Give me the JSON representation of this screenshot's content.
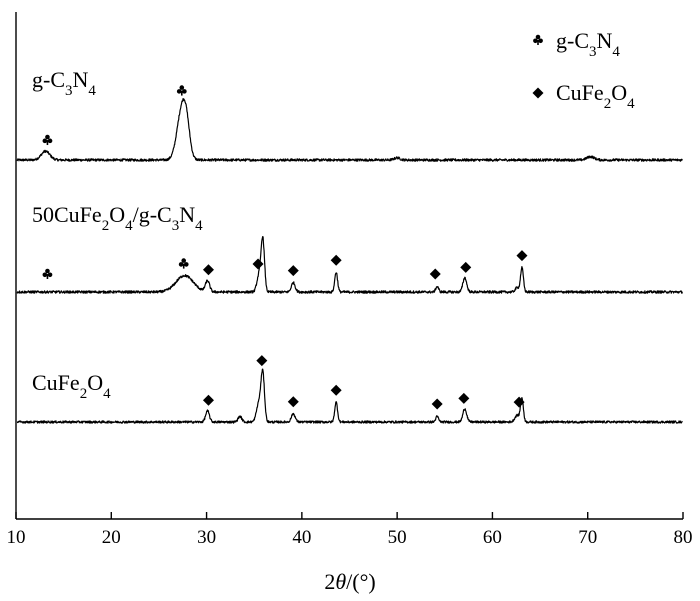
{
  "chart_data": {
    "type": "line",
    "xlabel_prefix": "2",
    "xlabel_symbol": "θ",
    "xlabel_unit": "/(°)",
    "xlim": [
      10,
      80
    ],
    "xticks": [
      "10",
      "20",
      "30",
      "40",
      "50",
      "60",
      "70",
      "80"
    ],
    "legend": {
      "position": "top-right",
      "entries": [
        {
          "marker": "club",
          "parts": [
            [
              "g-C",
              ""
            ],
            [
              "3",
              "sub"
            ],
            [
              "N",
              ""
            ],
            [
              "4",
              "sub"
            ]
          ]
        },
        {
          "marker": "diamond",
          "parts": [
            [
              "CuFe",
              ""
            ],
            [
              "2",
              "sub"
            ],
            [
              "O",
              ""
            ],
            [
              "4",
              "sub"
            ]
          ]
        }
      ]
    },
    "series": [
      {
        "name_parts": [
          [
            "g-C",
            ""
          ],
          [
            "3",
            "sub"
          ],
          [
            "N",
            ""
          ],
          [
            "4",
            "sub"
          ]
        ],
        "baseline": 0,
        "noise": 2.2,
        "peaks": [
          {
            "x": 13.1,
            "h": 16,
            "w": 0.45
          },
          {
            "x": 27.4,
            "h": 90,
            "w": 0.5
          },
          {
            "x": 27.9,
            "h": 40,
            "w": 0.35
          },
          {
            "x": 50.0,
            "h": 4,
            "w": 0.3
          },
          {
            "x": 70.3,
            "h": 6,
            "w": 0.4
          }
        ],
        "markers": [
          {
            "x": 13.3,
            "type": "club"
          },
          {
            "x": 27.4,
            "type": "club"
          }
        ]
      },
      {
        "name_parts": [
          [
            "50CuFe",
            ""
          ],
          [
            "2",
            "sub"
          ],
          [
            "O",
            ""
          ],
          [
            "4",
            "sub"
          ],
          [
            "/g-C",
            ""
          ],
          [
            "3",
            "sub"
          ],
          [
            "N",
            ""
          ],
          [
            "4",
            "sub"
          ]
        ],
        "baseline": 0,
        "noise": 2.2,
        "peaks": [
          {
            "x": 27.7,
            "h": 30,
            "w": 0.9
          },
          {
            "x": 30.1,
            "h": 20,
            "w": 0.22
          },
          {
            "x": 35.5,
            "h": 30,
            "w": 0.22
          },
          {
            "x": 35.9,
            "h": 95,
            "w": 0.18
          },
          {
            "x": 39.1,
            "h": 17,
            "w": 0.2
          },
          {
            "x": 43.6,
            "h": 36,
            "w": 0.15
          },
          {
            "x": 54.2,
            "h": 10,
            "w": 0.15
          },
          {
            "x": 57.1,
            "h": 26,
            "w": 0.2
          },
          {
            "x": 62.6,
            "h": 8,
            "w": 0.2
          },
          {
            "x": 63.1,
            "h": 44,
            "w": 0.15
          }
        ],
        "markers": [
          {
            "x": 13.3,
            "type": "club"
          },
          {
            "x": 27.6,
            "type": "club"
          },
          {
            "x": 30.2,
            "type": "diamond"
          },
          {
            "x": 35.4,
            "type": "diamond"
          },
          {
            "x": 39.1,
            "type": "diamond"
          },
          {
            "x": 43.6,
            "type": "diamond"
          },
          {
            "x": 54.0,
            "type": "diamond"
          },
          {
            "x": 57.2,
            "type": "diamond"
          },
          {
            "x": 63.1,
            "type": "diamond"
          }
        ]
      },
      {
        "name_parts": [
          [
            "CuFe",
            ""
          ],
          [
            "2",
            "sub"
          ],
          [
            "O",
            ""
          ],
          [
            "4",
            "sub"
          ]
        ],
        "baseline": 0,
        "noise": 2.0,
        "peaks": [
          {
            "x": 30.1,
            "h": 20,
            "w": 0.2
          },
          {
            "x": 33.5,
            "h": 10,
            "w": 0.2
          },
          {
            "x": 35.5,
            "h": 35,
            "w": 0.25
          },
          {
            "x": 35.9,
            "h": 85,
            "w": 0.18
          },
          {
            "x": 39.1,
            "h": 15,
            "w": 0.2
          },
          {
            "x": 43.6,
            "h": 36,
            "w": 0.15
          },
          {
            "x": 54.2,
            "h": 10,
            "w": 0.15
          },
          {
            "x": 57.1,
            "h": 24,
            "w": 0.2
          },
          {
            "x": 62.6,
            "h": 12,
            "w": 0.25
          },
          {
            "x": 63.1,
            "h": 42,
            "w": 0.15
          }
        ],
        "markers": [
          {
            "x": 30.2,
            "type": "diamond"
          },
          {
            "x": 35.8,
            "type": "diamond"
          },
          {
            "x": 39.1,
            "type": "diamond"
          },
          {
            "x": 43.6,
            "type": "diamond"
          },
          {
            "x": 54.2,
            "type": "diamond"
          },
          {
            "x": 57.0,
            "type": "diamond"
          },
          {
            "x": 62.8,
            "type": "diamond"
          }
        ]
      }
    ]
  }
}
